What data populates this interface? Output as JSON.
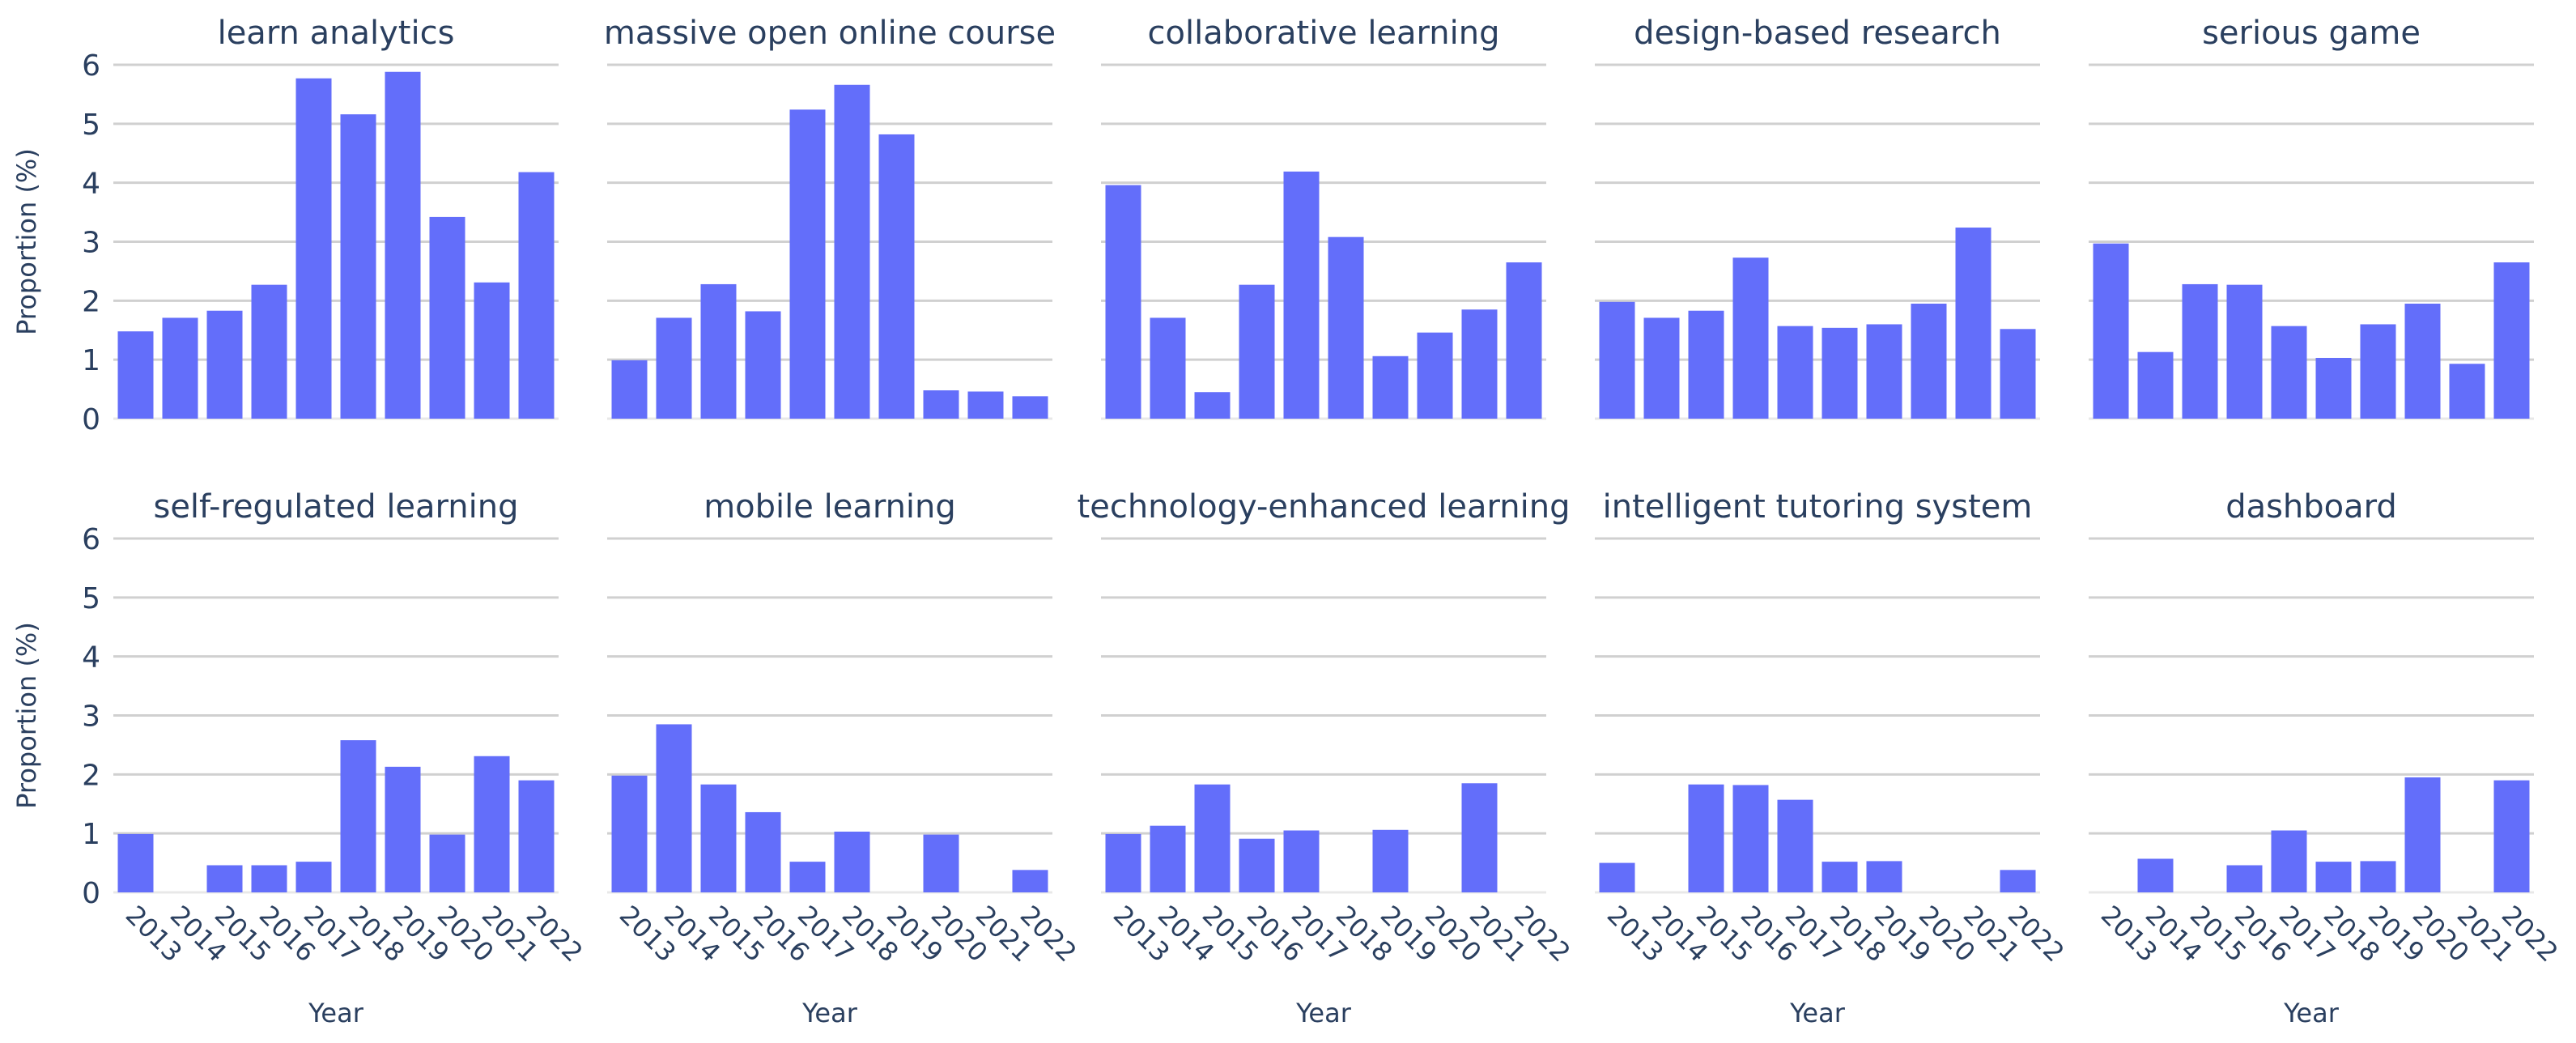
{
  "chart_data": {
    "type": "bar",
    "layout": "small-multiples",
    "years": [
      "2013",
      "2014",
      "2015",
      "2016",
      "2017",
      "2018",
      "2019",
      "2020",
      "2021",
      "2022"
    ],
    "xlabel": "Year",
    "ylabel": "Proportion (%)",
    "ylim": [
      0,
      6
    ],
    "yticks": [
      "0",
      "1",
      "2",
      "3",
      "4",
      "5",
      "6"
    ],
    "grid": true,
    "bar_color": "#636efa",
    "panels": [
      {
        "title": "learn analytics",
        "values": [
          1.48,
          1.71,
          1.83,
          2.27,
          5.77,
          5.16,
          5.88,
          3.42,
          2.31,
          4.18
        ]
      },
      {
        "title": "massive open online course",
        "values": [
          0.99,
          1.71,
          2.28,
          1.82,
          5.24,
          5.66,
          4.82,
          0.48,
          0.46,
          0.38
        ]
      },
      {
        "title": "collaborative learning",
        "values": [
          3.96,
          1.71,
          0.45,
          2.27,
          4.19,
          3.08,
          1.06,
          1.46,
          1.85,
          2.65
        ]
      },
      {
        "title": "design-based research",
        "values": [
          1.98,
          1.71,
          1.83,
          2.73,
          1.57,
          1.54,
          1.6,
          1.95,
          3.24,
          1.52
        ]
      },
      {
        "title": "serious game",
        "values": [
          2.97,
          1.13,
          2.28,
          2.27,
          1.57,
          1.03,
          1.6,
          1.95,
          0.93,
          2.65
        ]
      },
      {
        "title": "self-regulated learning",
        "values": [
          0.99,
          0,
          0.46,
          0.46,
          0.52,
          2.58,
          2.13,
          0.98,
          2.31,
          1.9
        ]
      },
      {
        "title": "mobile learning",
        "values": [
          1.98,
          2.85,
          1.83,
          1.36,
          0.52,
          1.03,
          0,
          0.98,
          0,
          0.38
        ]
      },
      {
        "title": "technology-enhanced learning",
        "values": [
          0.99,
          1.13,
          1.83,
          0.91,
          1.05,
          0,
          1.06,
          0,
          1.85,
          0
        ]
      },
      {
        "title": "intelligent tutoring system",
        "values": [
          0.5,
          0,
          1.83,
          1.82,
          1.57,
          0.52,
          0.53,
          0,
          0,
          0.38
        ]
      },
      {
        "title": "dashboard",
        "values": [
          0,
          0.57,
          0,
          0.46,
          1.05,
          0.52,
          0.53,
          1.95,
          0,
          1.9
        ]
      }
    ]
  }
}
